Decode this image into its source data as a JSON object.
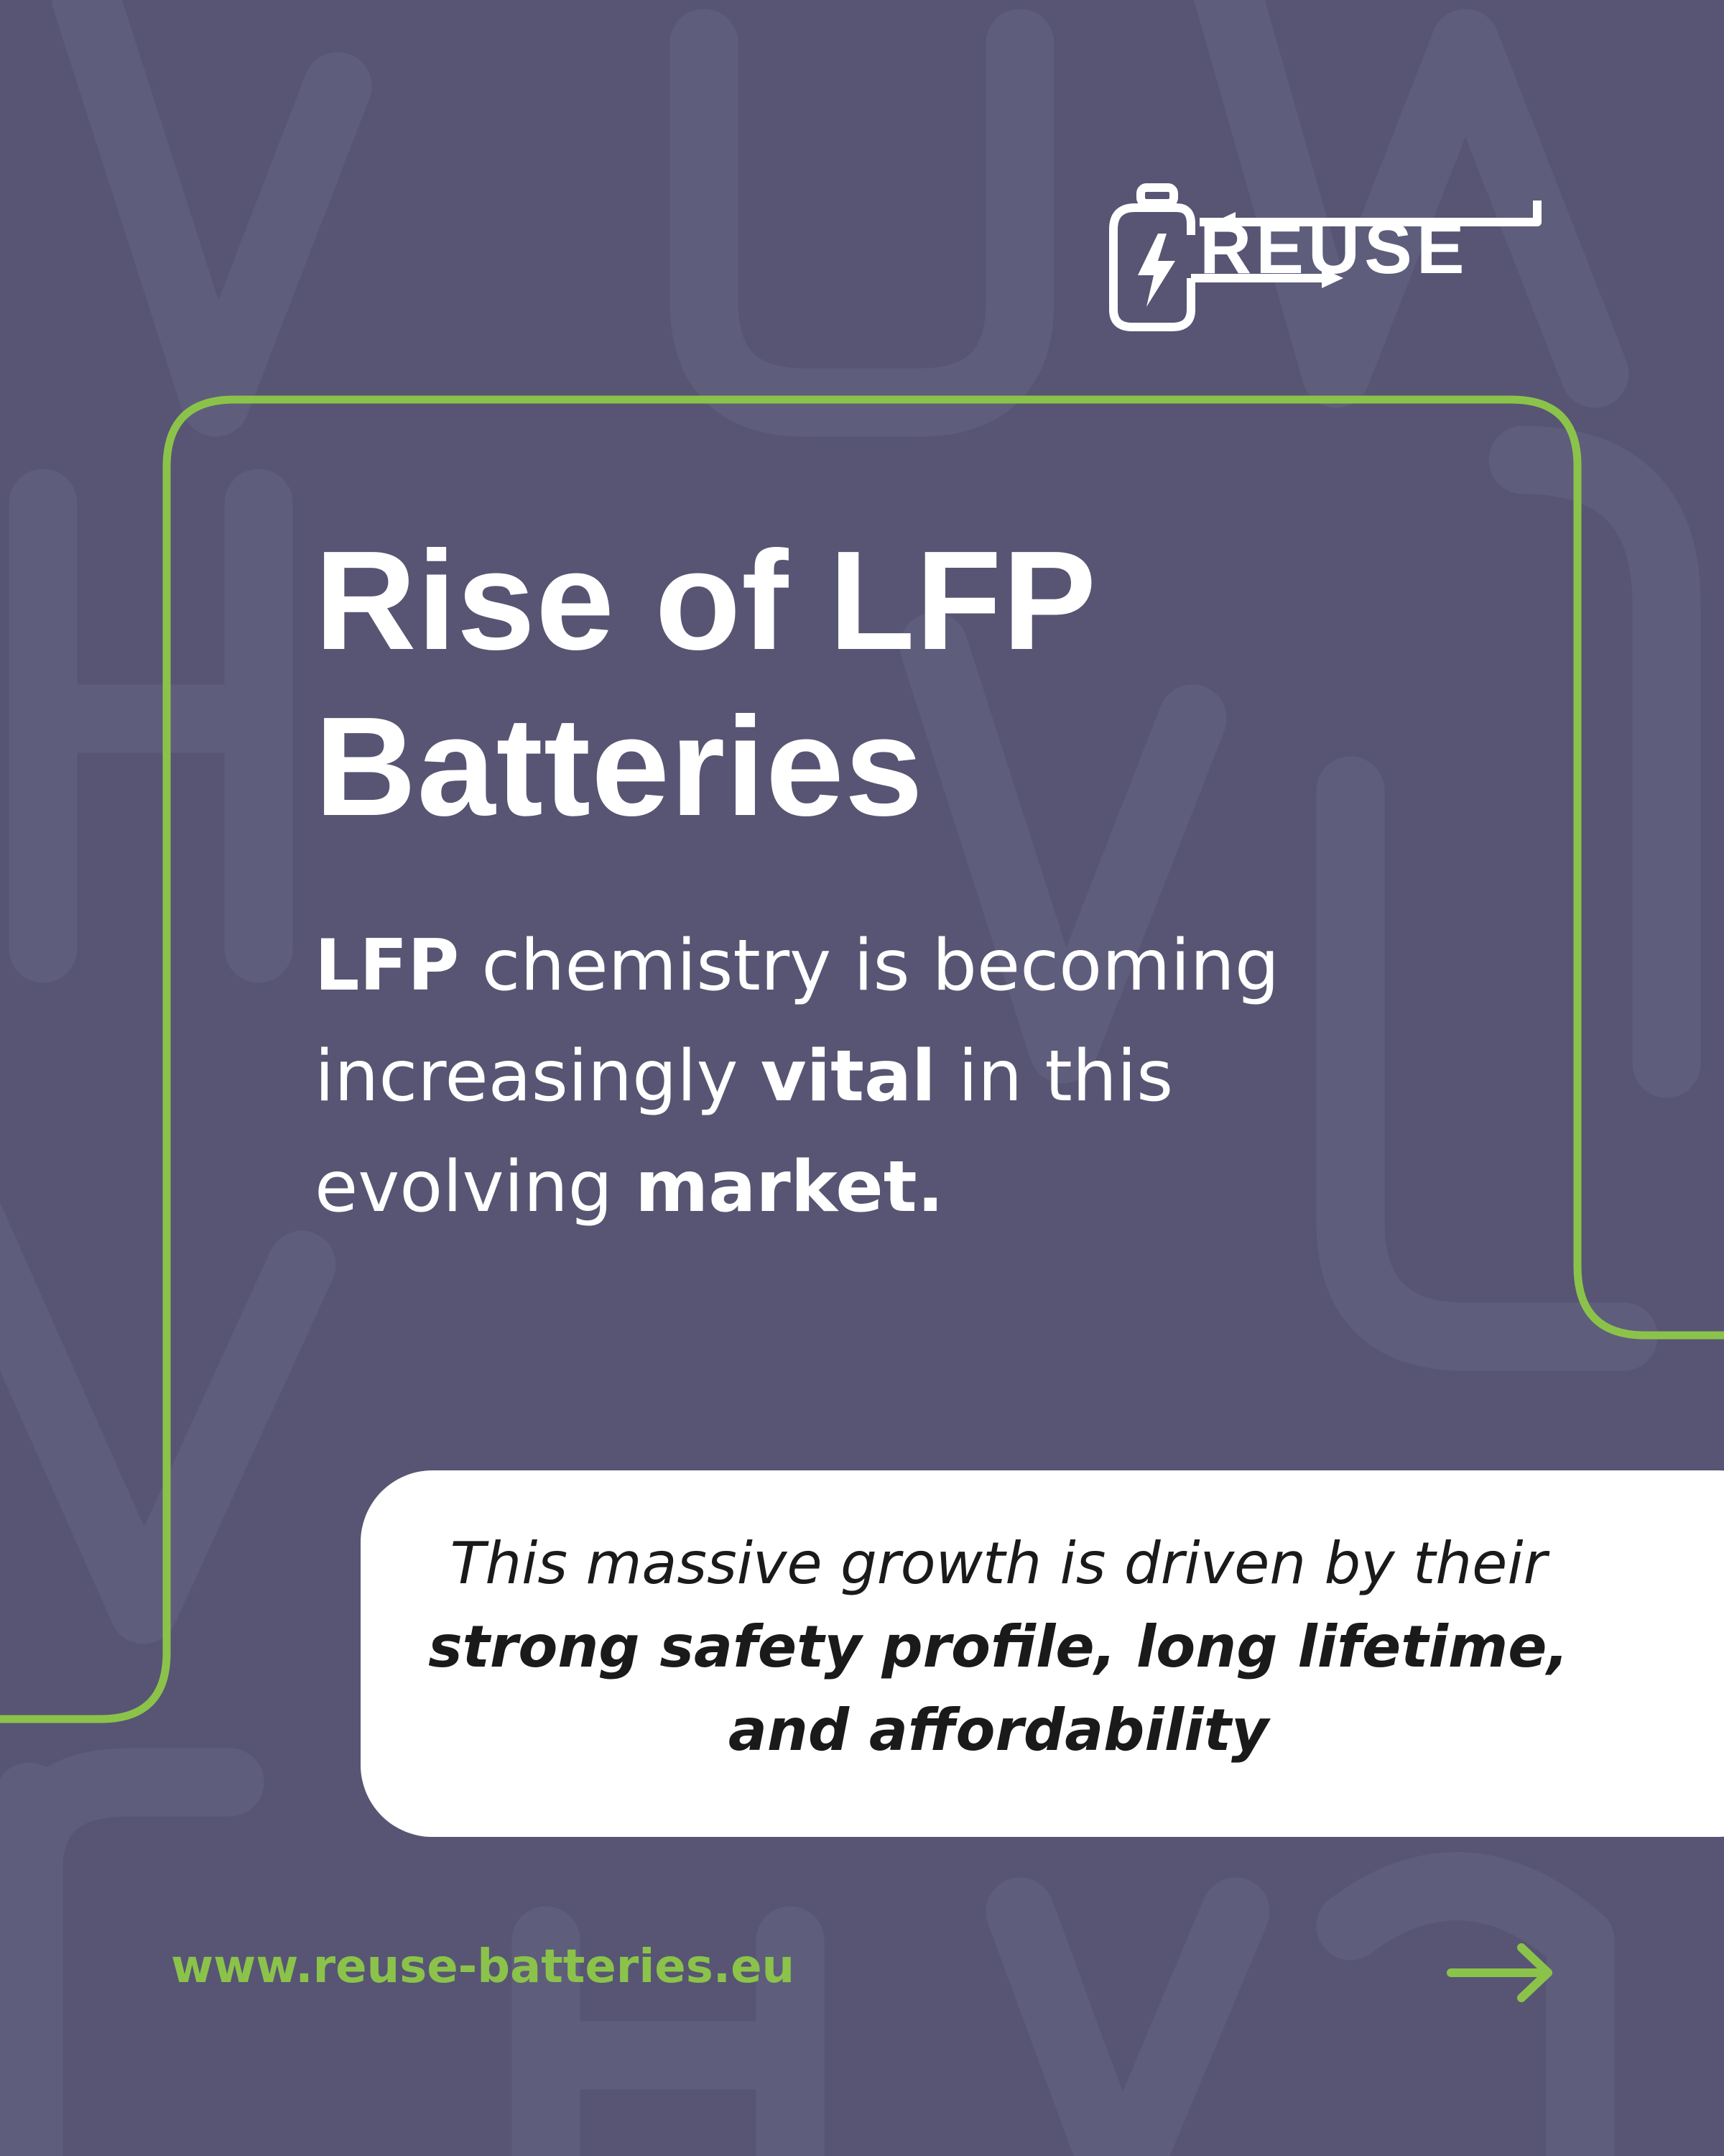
{
  "brand": {
    "logo_text": "REUSE",
    "logo_icon": "battery-lightning-icon",
    "colors": {
      "background": "#575573",
      "accent_green": "#8bc34a",
      "white": "#ffffff",
      "text_dark": "#1a1a1a"
    }
  },
  "title": {
    "line1": "Rise of LFP",
    "line2": "Batteries"
  },
  "lead": {
    "part1": "LFP",
    "part2": " chemistry is becoming increasingly ",
    "part3": "vital",
    "part4": " in this evolving ",
    "part5": "market."
  },
  "callout": {
    "part1": "This massive growth is driven by their ",
    "part2": "strong safety profile, long lifetime, and affordability"
  },
  "footer": {
    "url": "www.reuse-batteries.eu",
    "next_icon": "arrow-right-icon"
  }
}
